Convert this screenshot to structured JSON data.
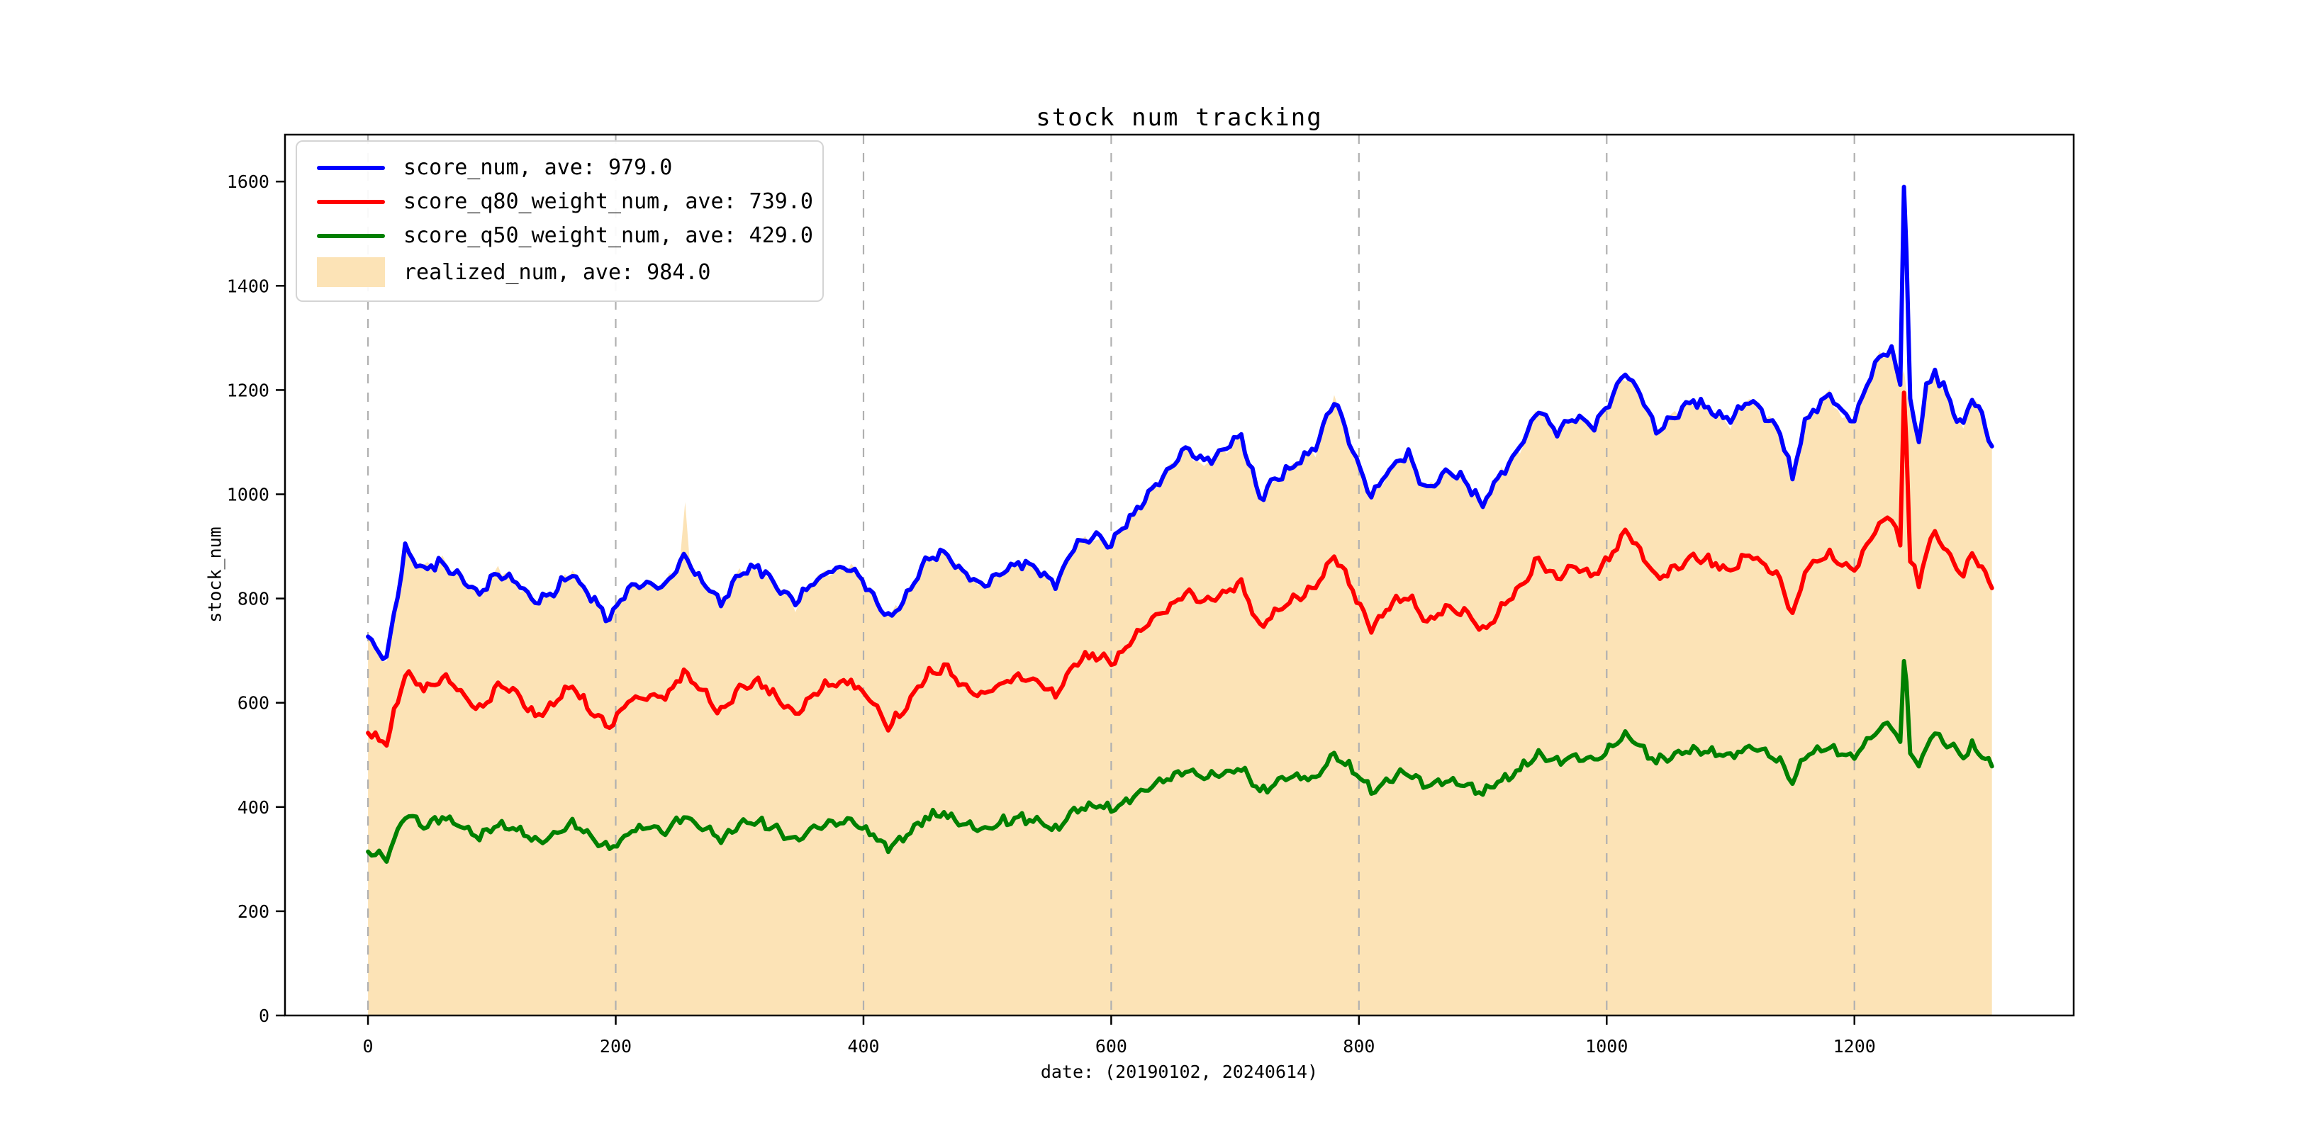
{
  "chart_data": {
    "type": "line",
    "title": "stock num tracking",
    "xlabel": "date: (20190102, 20240614)",
    "ylabel": "stock_num",
    "xlim": [
      -67,
      1377
    ],
    "ylim": [
      0,
      1690
    ],
    "xticks": [
      0,
      200,
      400,
      600,
      800,
      1000,
      1200
    ],
    "yticks": [
      0,
      200,
      400,
      600,
      800,
      1000,
      1200,
      1400,
      1600
    ],
    "grid": {
      "axis": "x",
      "style": "dashed",
      "color": "#b0b0b0"
    },
    "legend_position": "upper-left",
    "colors": {
      "axis": "#000000",
      "background": "#ffffff"
    },
    "x_keypoints": [
      0,
      15,
      30,
      45,
      60,
      75,
      90,
      105,
      120,
      135,
      150,
      165,
      180,
      195,
      210,
      225,
      240,
      255,
      270,
      285,
      300,
      315,
      330,
      345,
      360,
      375,
      390,
      405,
      420,
      435,
      450,
      465,
      480,
      495,
      510,
      525,
      540,
      555,
      570,
      585,
      600,
      615,
      630,
      645,
      660,
      675,
      690,
      705,
      720,
      735,
      750,
      765,
      780,
      795,
      810,
      822,
      830,
      840,
      855,
      870,
      885,
      900,
      915,
      930,
      945,
      960,
      975,
      990,
      1005,
      1015,
      1030,
      1040,
      1055,
      1070,
      1085,
      1100,
      1115,
      1125,
      1140,
      1150,
      1160,
      1170,
      1180,
      1190,
      1200,
      1210,
      1220,
      1230,
      1237,
      1240,
      1242,
      1245,
      1252,
      1258,
      1265,
      1272,
      1280,
      1288,
      1295,
      1303,
      1311
    ],
    "series": [
      {
        "name": "score_num",
        "legend_label": "score_num, ave: 979.0",
        "average": 979.0,
        "color": "#0000ff",
        "style": "line",
        "noise": 12,
        "y": [
          720,
          685,
          895,
          855,
          870,
          840,
          805,
          850,
          835,
          790,
          815,
          850,
          800,
          760,
          815,
          830,
          820,
          880,
          835,
          790,
          845,
          860,
          825,
          790,
          830,
          855,
          860,
          820,
          760,
          805,
          870,
          890,
          850,
          825,
          845,
          870,
          855,
          825,
          900,
          920,
          905,
          950,
          1000,
          1040,
          1090,
          1060,
          1085,
          1110,
          990,
          1035,
          1060,
          1090,
          1185,
          1085,
          995,
          1040,
          1060,
          1075,
          1005,
          1045,
          1030,
          980,
          1040,
          1090,
          1165,
          1120,
          1145,
          1130,
          1190,
          1235,
          1180,
          1120,
          1150,
          1180,
          1160,
          1140,
          1185,
          1160,
          1120,
          1030,
          1140,
          1170,
          1190,
          1155,
          1140,
          1210,
          1260,
          1275,
          1210,
          1590,
          1465,
          1180,
          1100,
          1200,
          1235,
          1205,
          1160,
          1130,
          1190,
          1150,
          1092
        ]
      },
      {
        "name": "score_q80_weight_num",
        "legend_label": "score_q80_weight_num, ave: 739.0",
        "average": 739.0,
        "color": "#ff0000",
        "style": "line",
        "noise": 12,
        "y": [
          545,
          520,
          660,
          628,
          648,
          620,
          588,
          632,
          618,
          575,
          598,
          632,
          585,
          550,
          602,
          615,
          608,
          660,
          622,
          580,
          628,
          642,
          612,
          578,
          618,
          638,
          642,
          608,
          552,
          595,
          652,
          668,
          632,
          612,
          632,
          652,
          640,
          612,
          672,
          692,
          678,
          712,
          752,
          780,
          815,
          790,
          810,
          830,
          745,
          780,
          800,
          820,
          885,
          815,
          743,
          780,
          795,
          805,
          755,
          785,
          775,
          735,
          780,
          820,
          875,
          840,
          860,
          845,
          890,
          930,
          880,
          838,
          858,
          882,
          868,
          852,
          888,
          868,
          838,
          768,
          852,
          872,
          888,
          862,
          852,
          902,
          942,
          958,
          902,
          1195,
          1095,
          878,
          822,
          895,
          925,
          902,
          868,
          845,
          890,
          858,
          820
        ]
      },
      {
        "name": "score_q50_weight_num",
        "legend_label": "score_q50_weight_num, ave: 429.0",
        "average": 429.0,
        "color": "#008000",
        "style": "line",
        "noise": 11,
        "y": [
          318,
          300,
          385,
          365,
          380,
          362,
          340,
          368,
          356,
          332,
          348,
          368,
          340,
          318,
          350,
          360,
          354,
          382,
          362,
          336,
          365,
          374,
          356,
          336,
          358,
          370,
          374,
          352,
          322,
          345,
          380,
          388,
          368,
          356,
          368,
          380,
          374,
          356,
          392,
          404,
          395,
          415,
          438,
          452,
          472,
          458,
          465,
          475,
          428,
          448,
          460,
          455,
          500,
          470,
          430,
          448,
          458,
          465,
          437,
          452,
          446,
          425,
          450,
          472,
          505,
          485,
          498,
          490,
          516,
          540,
          510,
          487,
          498,
          513,
          504,
          496,
          516,
          504,
          487,
          447,
          496,
          507,
          516,
          501,
          496,
          525,
          548,
          556,
          525,
          680,
          640,
          510,
          478,
          519,
          539,
          525,
          513,
          498,
          515,
          495,
          478
        ]
      },
      {
        "name": "realized_num",
        "legend_label": "realized_num, ave: 984.0",
        "average": 984.0,
        "color": "#ffa500",
        "fill_color": "#fce3b6",
        "style": "area",
        "noise": 12,
        "x": [
          0,
          15,
          30,
          45,
          60,
          75,
          90,
          105,
          120,
          135,
          150,
          165,
          180,
          195,
          210,
          225,
          240,
          252,
          256,
          260,
          270,
          285,
          300,
          315,
          330,
          345,
          360,
          375,
          390,
          405,
          420,
          435,
          450,
          465,
          480,
          495,
          510,
          525,
          540,
          555,
          570,
          585,
          600,
          615,
          630,
          645,
          660,
          675,
          690,
          705,
          720,
          735,
          750,
          765,
          780,
          795,
          810,
          822,
          830,
          840,
          855,
          870,
          885,
          900,
          915,
          930,
          945,
          960,
          975,
          990,
          1005,
          1015,
          1030,
          1040,
          1055,
          1070,
          1085,
          1100,
          1115,
          1125,
          1140,
          1150,
          1160,
          1170,
          1180,
          1190,
          1200,
          1210,
          1220,
          1230,
          1237,
          1240,
          1242,
          1245,
          1252,
          1258,
          1265,
          1272,
          1280,
          1288,
          1295,
          1303,
          1311
        ],
        "y": [
          724,
          680,
          890,
          860,
          875,
          834,
          810,
          856,
          828,
          796,
          810,
          856,
          794,
          766,
          820,
          824,
          826,
          878,
          985,
          872,
          830,
          796,
          850,
          854,
          830,
          786,
          836,
          850,
          866,
          814,
          766,
          800,
          876,
          884,
          856,
          820,
          850,
          864,
          860,
          820,
          906,
          914,
          910,
          956,
          994,
          1046,
          1084,
          1054,
          1080,
          1104,
          996,
          1030,
          1066,
          1084,
          1190,
          1080,
          1000,
          1034,
          1066,
          1070,
          1010,
          1040,
          1036,
          974,
          1046,
          1084,
          1170,
          1114,
          1150,
          1124,
          1196,
          1228,
          1186,
          1114,
          1156,
          1174,
          1166,
          1134,
          1190,
          1154,
          1126,
          1024,
          1146,
          1164,
          1196,
          1148,
          1146,
          1204,
          1266,
          1268,
          1216,
          1238,
          1200,
          1150,
          1094,
          1206,
          1230,
          1198,
          1166,
          1124,
          1184,
          1156,
          1090
        ]
      }
    ]
  }
}
